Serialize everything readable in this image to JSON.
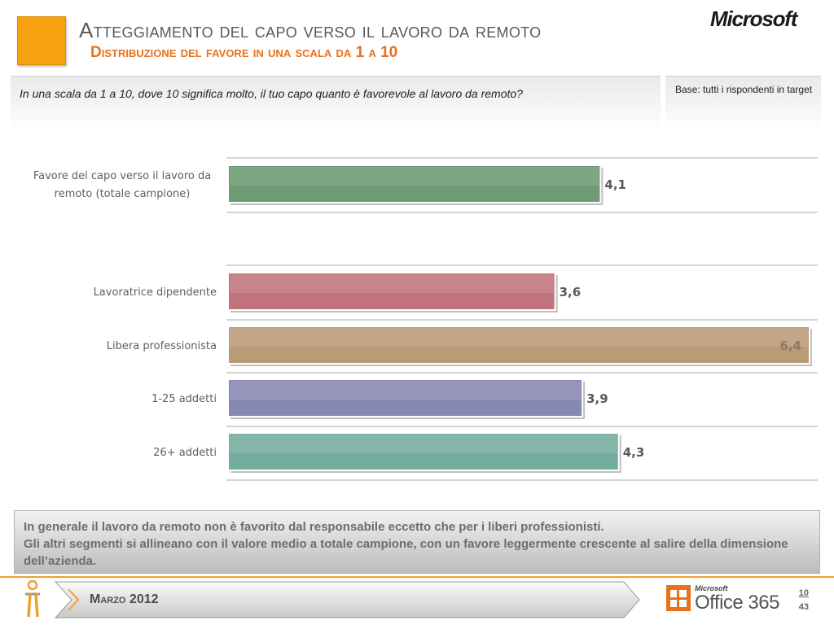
{
  "header": {
    "title": "Atteggiamento del capo verso il lavoro da remoto",
    "subtitle": "Distribuzione del favore in una scala da 1 a 10",
    "brand": "Microsoft"
  },
  "question": {
    "text": "In una scala da 1 a 10, dove 10 significa molto, il tuo capo quanto è favorevole al lavoro da remoto?",
    "base": "Base: tutti i rispondenti in target"
  },
  "chart_data": {
    "type": "bar",
    "orientation": "horizontal",
    "categories": [
      "Favore del capo verso il lavoro da remoto (totale campione)",
      "Lavoratrice dipendente",
      "Libera professionista",
      "1-25 addetti",
      "26+ addetti"
    ],
    "category_lines": [
      [
        "Favore del capo verso il lavoro da",
        "remoto (totale campione)"
      ],
      [
        "Lavoratrice dipendente"
      ],
      [
        "Libera professionista"
      ],
      [
        "1-25 addetti"
      ],
      [
        "26+ addetti"
      ]
    ],
    "values": [
      4.1,
      3.6,
      6.4,
      3.9,
      4.3
    ],
    "value_labels": [
      "4,1",
      "3,6",
      "6,4",
      "3,9",
      "4,3"
    ],
    "colors": [
      "#6e9a74",
      "#c0737a",
      "#bb9a77",
      "#8888b4",
      "#72ac9e"
    ],
    "xlim": [
      0,
      6.4
    ],
    "grid": false,
    "legend": "none"
  },
  "conclusion": {
    "text": "In generale il lavoro da remoto non è favorito dal responsabile eccetto che per i liberi professionisti.\nGli altri segmenti si allineano con il valore medio a totale campione, con un favore leggermente crescente al salire della dimensione dell’azienda."
  },
  "footer": {
    "date": "Marzo 2012",
    "office_brand_small": "Microsoft",
    "office_brand": "Office 365",
    "page": "10",
    "total_pages": "43"
  },
  "colors": {
    "accent_orange": "#f7a112",
    "subtitle_orange": "#e8711c",
    "title_gray": "#595959"
  }
}
